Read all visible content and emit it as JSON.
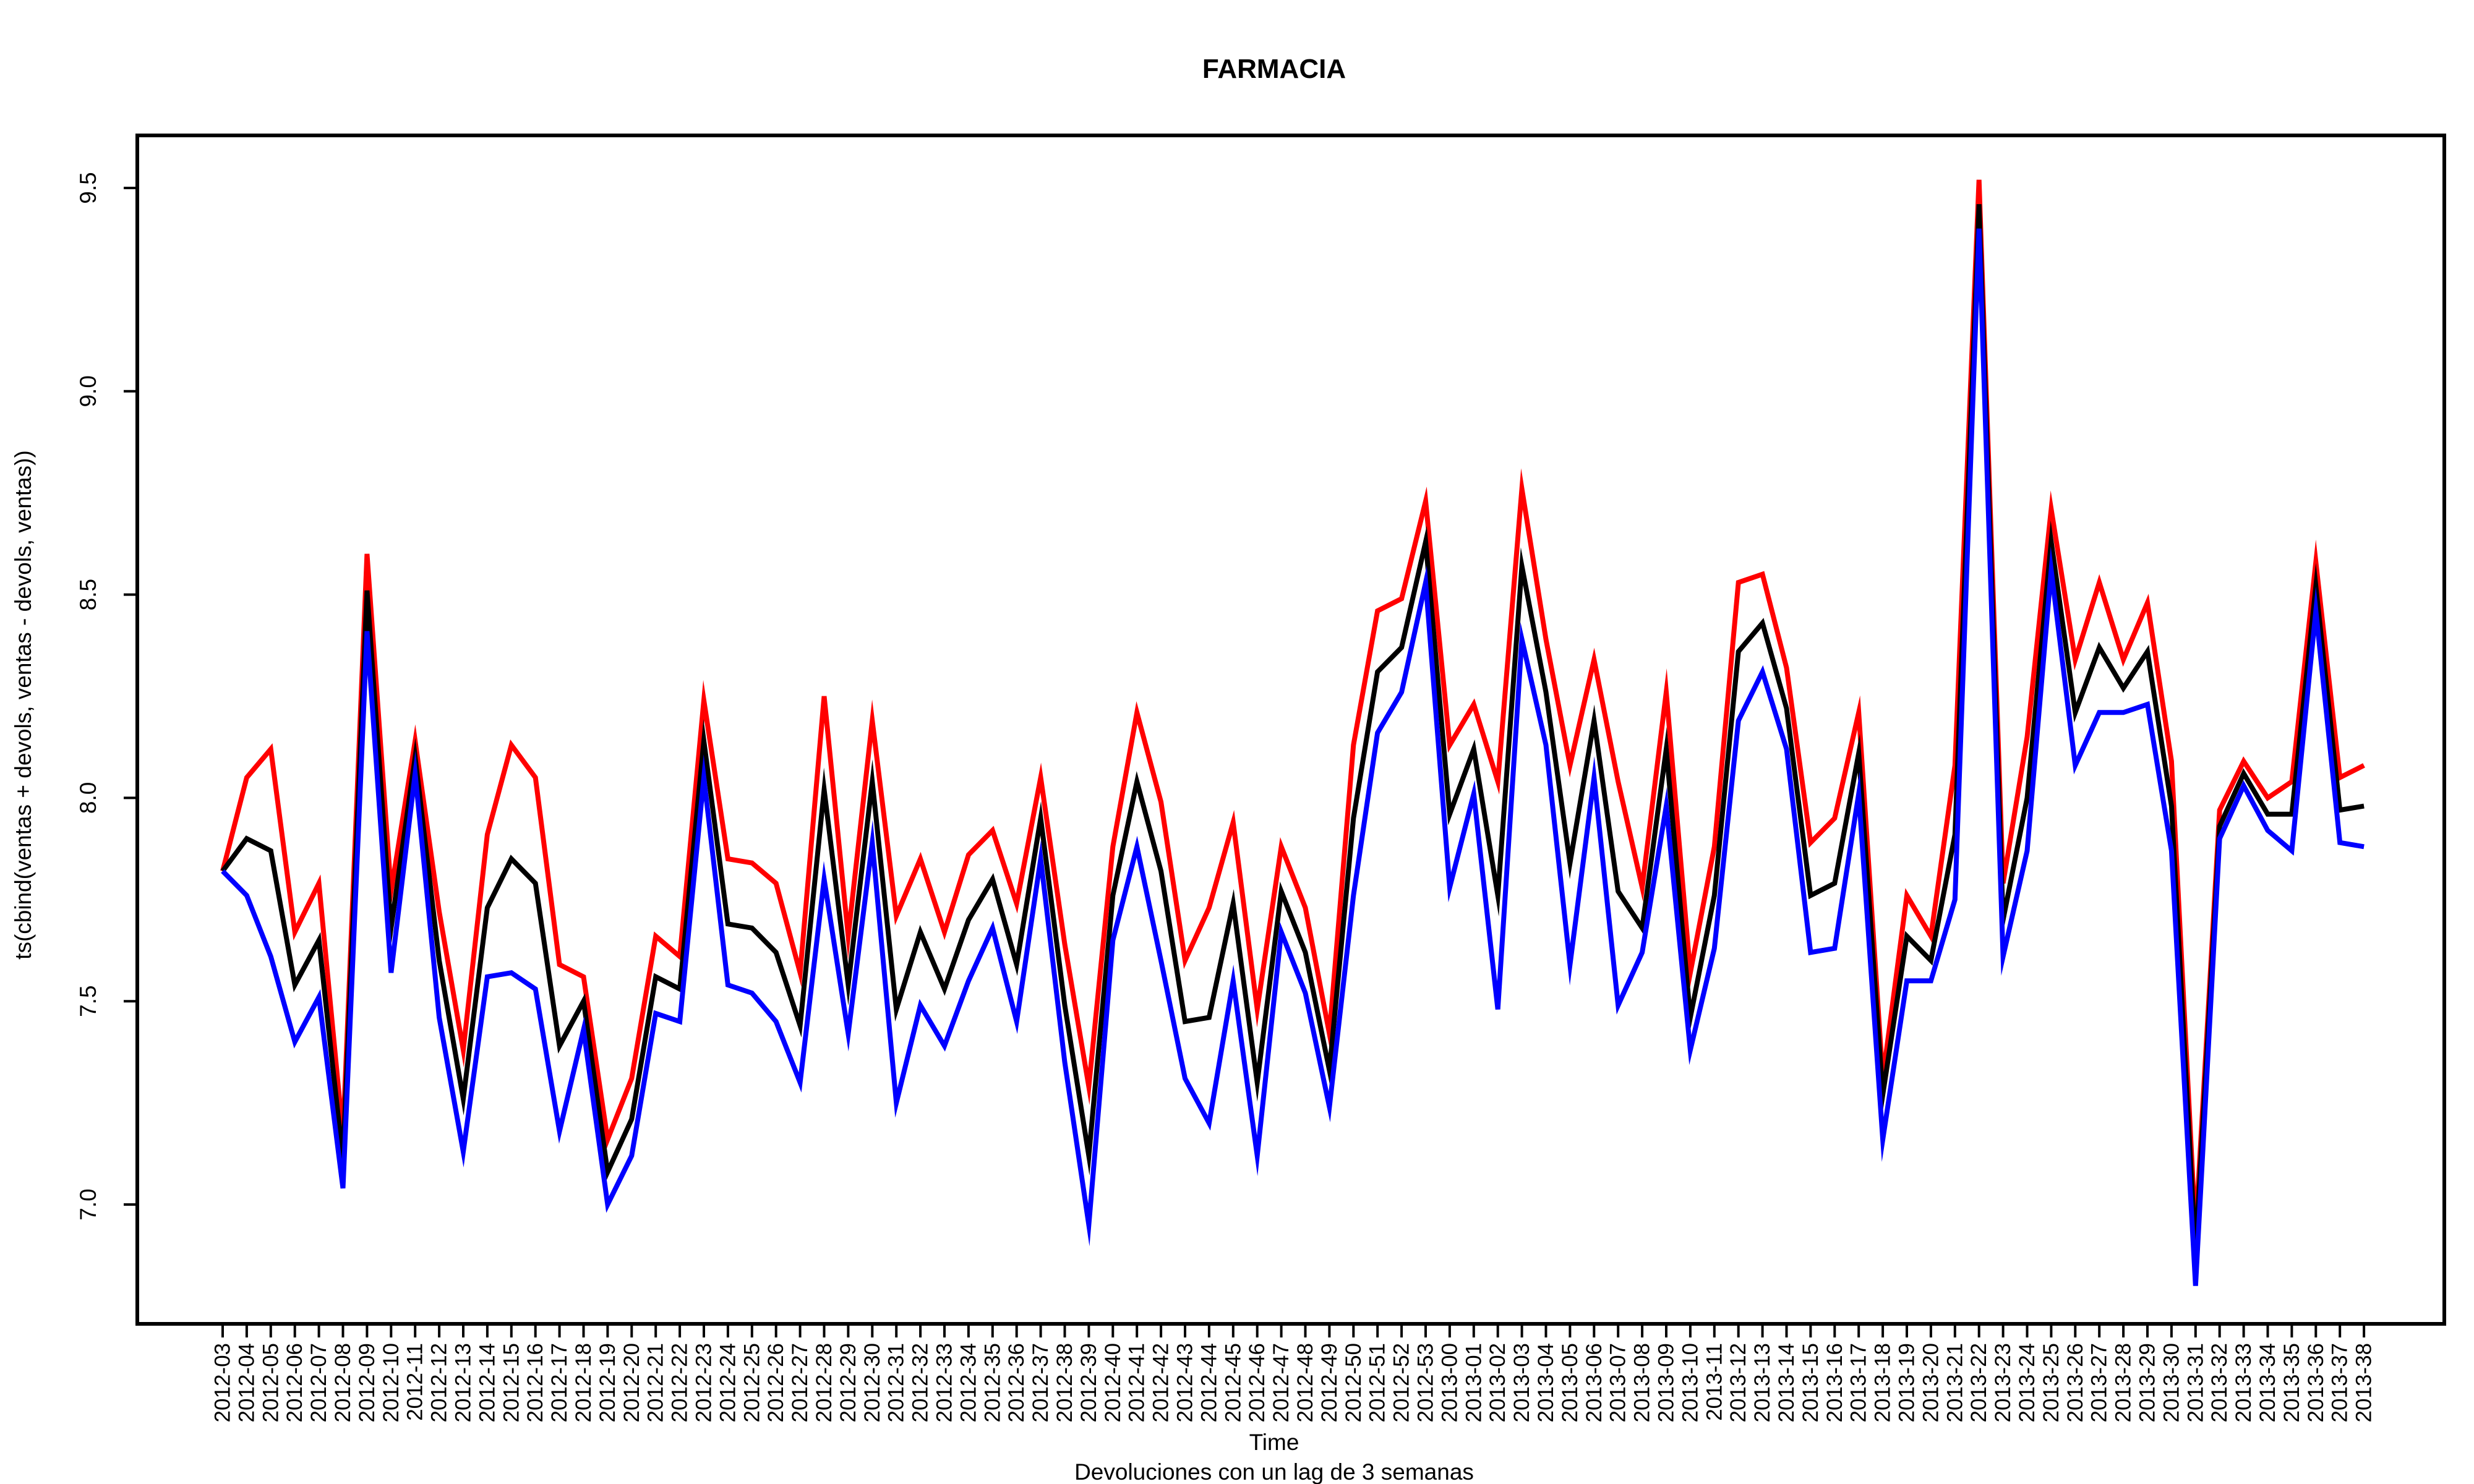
{
  "chart_data": {
    "type": "line",
    "title": "FARMACIA",
    "xlabel": "Time",
    "ylabel": "ts(cbind(ventas + devols, ventas - devols, ventas))",
    "caption": "Devoluciones con un lag de 3 semanas",
    "ylim": [
      6.85,
      9.65
    ],
    "yticks": [
      "7.0",
      "7.5",
      "8.0",
      "8.5",
      "9.0",
      "9.5"
    ],
    "grid": false,
    "legend": "none",
    "categories": [
      "2012-03",
      "2012-04",
      "2012-05",
      "2012-06",
      "2012-07",
      "2012-08",
      "2012-09",
      "2012-10",
      "2012-11",
      "2012-12",
      "2012-13",
      "2012-14",
      "2012-15",
      "2012-16",
      "2012-17",
      "2012-18",
      "2012-19",
      "2012-20",
      "2012-21",
      "2012-22",
      "2012-23",
      "2012-24",
      "2012-25",
      "2012-26",
      "2012-27",
      "2012-28",
      "2012-29",
      "2012-30",
      "2012-31",
      "2012-32",
      "2012-33",
      "2012-34",
      "2012-35",
      "2012-36",
      "2012-37",
      "2012-38",
      "2012-39",
      "2012-40",
      "2012-41",
      "2012-42",
      "2012-43",
      "2012-44",
      "2012-45",
      "2012-46",
      "2012-47",
      "2012-48",
      "2012-49",
      "2012-50",
      "2012-51",
      "2012-52",
      "2012-53",
      "2013-00",
      "2013-01",
      "2013-02",
      "2013-03",
      "2013-04",
      "2013-05",
      "2013-06",
      "2013-07",
      "2013-08",
      "2013-09",
      "2013-10",
      "2013-11",
      "2013-12",
      "2013-13",
      "2013-14",
      "2013-15",
      "2013-16",
      "2013-17",
      "2013-18",
      "2013-19",
      "2013-20",
      "2013-21",
      "2013-22",
      "2013-23",
      "2013-24",
      "2013-25",
      "2013-26",
      "2013-27",
      "2013-28",
      "2013-29",
      "2013-30",
      "2013-31",
      "2013-32",
      "2013-33",
      "2013-34",
      "2013-35",
      "2013-36",
      "2013-37",
      "2013-38"
    ],
    "series": [
      {
        "color": "#ff0000",
        "values": [
          7.82,
          8.05,
          8.12,
          7.67,
          7.79,
          7.17,
          8.6,
          7.77,
          8.14,
          7.72,
          7.38,
          7.91,
          8.13,
          8.05,
          7.59,
          7.56,
          7.16,
          7.31,
          7.66,
          7.61,
          8.24,
          7.85,
          7.84,
          7.79,
          7.57,
          8.25,
          7.66,
          8.19,
          7.71,
          7.85,
          7.67,
          7.86,
          7.92,
          7.74,
          8.05,
          7.64,
          7.29,
          7.88,
          8.21,
          7.99,
          7.6,
          7.73,
          7.94,
          7.48,
          7.88,
          7.73,
          7.42,
          8.13,
          8.46,
          8.49,
          8.73,
          8.13,
          8.23,
          8.04,
          8.76,
          8.39,
          8.08,
          8.34,
          8.04,
          7.78,
          8.26,
          7.57,
          7.88,
          8.53,
          8.55,
          8.32,
          7.89,
          7.95,
          8.21,
          7.31,
          7.76,
          7.66,
          8.08,
          9.52,
          7.79,
          8.15,
          8.71,
          8.34,
          8.53,
          8.34,
          8.48,
          8.09,
          6.93,
          7.97,
          8.09,
          8.0,
          8.04,
          8.58,
          8.05,
          8.08
        ]
      },
      {
        "color": "#000000",
        "values": [
          7.82,
          7.9,
          7.87,
          7.54,
          7.65,
          7.11,
          8.51,
          7.68,
          8.1,
          7.6,
          7.26,
          7.73,
          7.85,
          7.79,
          7.39,
          7.5,
          7.08,
          7.21,
          7.56,
          7.53,
          8.14,
          7.69,
          7.68,
          7.62,
          7.44,
          8.02,
          7.54,
          8.04,
          7.48,
          7.67,
          7.53,
          7.7,
          7.8,
          7.59,
          7.95,
          7.49,
          7.12,
          7.76,
          8.04,
          7.82,
          7.45,
          7.46,
          7.74,
          7.3,
          7.77,
          7.62,
          7.33,
          7.95,
          8.31,
          8.37,
          8.63,
          7.96,
          8.12,
          7.76,
          8.57,
          8.26,
          7.84,
          8.19,
          7.77,
          7.68,
          8.12,
          7.46,
          7.76,
          8.36,
          8.43,
          8.22,
          7.76,
          7.79,
          8.11,
          7.27,
          7.66,
          7.6,
          7.91,
          9.46,
          7.7,
          8.0,
          8.63,
          8.21,
          8.37,
          8.27,
          8.36,
          7.98,
          6.88,
          7.93,
          8.06,
          7.96,
          7.96,
          8.52,
          7.97,
          7.98
        ]
      },
      {
        "color": "#0000ff",
        "values": [
          7.82,
          7.76,
          7.61,
          7.4,
          7.51,
          7.04,
          8.41,
          7.57,
          8.06,
          7.46,
          7.13,
          7.56,
          7.57,
          7.53,
          7.18,
          7.43,
          7.0,
          7.12,
          7.47,
          7.45,
          8.05,
          7.54,
          7.52,
          7.45,
          7.3,
          7.8,
          7.42,
          7.89,
          7.25,
          7.49,
          7.39,
          7.55,
          7.68,
          7.45,
          7.85,
          7.35,
          6.95,
          7.65,
          7.88,
          7.6,
          7.31,
          7.2,
          7.55,
          7.12,
          7.67,
          7.52,
          7.24,
          7.76,
          8.16,
          8.26,
          8.53,
          7.78,
          8.01,
          7.48,
          8.39,
          8.13,
          7.59,
          8.05,
          7.49,
          7.62,
          7.98,
          7.38,
          7.63,
          8.19,
          8.31,
          8.12,
          7.62,
          7.63,
          8.01,
          7.16,
          7.55,
          7.55,
          7.75,
          9.4,
          7.61,
          7.87,
          8.56,
          8.08,
          8.21,
          8.21,
          8.23,
          7.87,
          6.8,
          7.9,
          8.03,
          7.92,
          7.87,
          8.46,
          7.89,
          7.88
        ]
      }
    ]
  }
}
